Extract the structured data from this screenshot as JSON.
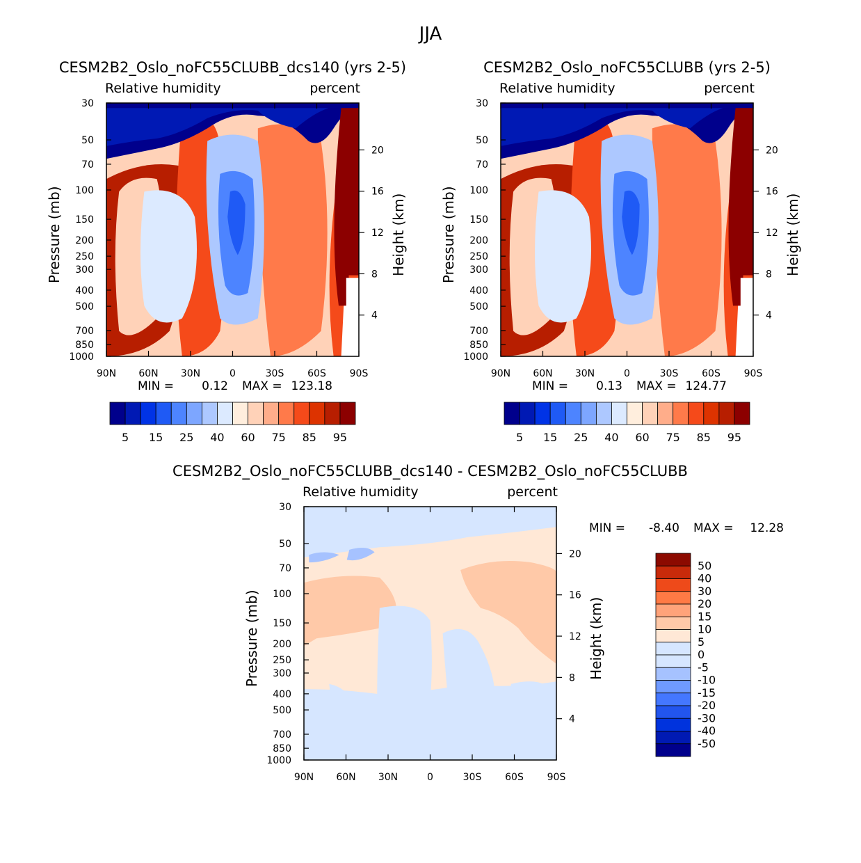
{
  "page": {
    "season_title": "JJA"
  },
  "colors": {
    "rh": [
      "#00008c",
      "#0019b4",
      "#0033e6",
      "#1f5af5",
      "#4d84ff",
      "#7da6ff",
      "#adc8ff",
      "#dceaff",
      "#ffeedd",
      "#ffd2b8",
      "#ffad8a",
      "#ff7a4a",
      "#f54a1a",
      "#dd3300",
      "#b71e00",
      "#8c0000"
    ],
    "diff": [
      "#00008c",
      "#001ab3",
      "#0033dd",
      "#2255ee",
      "#4477ff",
      "#6f9aff",
      "#a6c2ff",
      "#d6e6ff",
      "#ffe8d6",
      "#ffc9a8",
      "#ffa37a",
      "#ff7a45",
      "#ee4a1a",
      "#c82a0a",
      "#8c0a00"
    ]
  },
  "panels": [
    {
      "id": "dcs140",
      "title": "CESM2B2_Oslo_noFC55CLUBB_dcs140 (yrs 2-5)",
      "left_label": "Relative humidity",
      "right_label": "percent",
      "y_axis_title": "Pressure (mb)",
      "y2_axis_title": "Height (km)",
      "min_label": "MIN =",
      "min_value": "0.12",
      "max_label": "MAX =",
      "max_value": "123.18",
      "colorbar_ticks": [
        "5",
        "15",
        "25",
        "40",
        "60",
        "75",
        "85",
        "95"
      ]
    },
    {
      "id": "control",
      "title": "CESM2B2_Oslo_noFC55CLUBB (yrs 2-5)",
      "left_label": "Relative humidity",
      "right_label": "percent",
      "y_axis_title": "Pressure (mb)",
      "y2_axis_title": "Height (km)",
      "min_label": "MIN =",
      "min_value": "0.13",
      "max_label": "MAX =",
      "max_value": "124.77",
      "colorbar_ticks": [
        "5",
        "15",
        "25",
        "40",
        "60",
        "75",
        "85",
        "95"
      ]
    },
    {
      "id": "difference",
      "title": "CESM2B2_Oslo_noFC55CLUBB_dcs140 - CESM2B2_Oslo_noFC55CLUBB",
      "left_label": "Relative humidity",
      "right_label": "percent",
      "y_axis_title": "Pressure (mb)",
      "y2_axis_title": "Height (km)",
      "min_label": "MIN =",
      "min_value": "-8.40",
      "max_label": "MAX =",
      "max_value": "12.28",
      "colorbar_ticks": [
        "50",
        "40",
        "30",
        "20",
        "15",
        "10",
        "5",
        "0",
        "-5",
        "-10",
        "-15",
        "-20",
        "-30",
        "-40",
        "-50"
      ]
    }
  ],
  "chart_data": {
    "type": "heatmap",
    "title": "JJA",
    "x_tick_labels": [
      "90N",
      "60N",
      "30N",
      "0",
      "30S",
      "60S",
      "90S"
    ],
    "x_ticks_lat": [
      90,
      60,
      30,
      0,
      -30,
      -60,
      -90
    ],
    "y_tick_labels": [
      "30",
      "50",
      "70",
      "100",
      "150",
      "200",
      "250",
      "300",
      "400",
      "500",
      "700",
      "850",
      "1000"
    ],
    "y_ticks_mb": [
      30,
      50,
      70,
      100,
      150,
      200,
      250,
      300,
      400,
      500,
      700,
      850,
      1000
    ],
    "y2_tick_labels": [
      "20",
      "16",
      "12",
      "8",
      "4"
    ],
    "y2_ticks_km": [
      20,
      16,
      12,
      8,
      4
    ],
    "xlabel": "",
    "ylabel": "Pressure (mb)",
    "y2label": "Height (km)",
    "xlim": [
      90,
      -90
    ],
    "ylim": [
      1000,
      30
    ],
    "variable": "Relative humidity",
    "units": "percent",
    "rh_contour_levels": [
      5,
      10,
      15,
      20,
      25,
      30,
      40,
      50,
      60,
      70,
      75,
      80,
      85,
      90,
      95
    ],
    "diff_contour_levels": [
      -50,
      -40,
      -30,
      -20,
      -15,
      -10,
      -5,
      0,
      5,
      10,
      15,
      20,
      30,
      40,
      50
    ],
    "panels": [
      {
        "id": "dcs140",
        "min": 0.12,
        "max": 123.18
      },
      {
        "id": "control",
        "min": 0.13,
        "max": 124.77
      },
      {
        "id": "difference",
        "min": -8.4,
        "max": 12.28
      }
    ]
  }
}
